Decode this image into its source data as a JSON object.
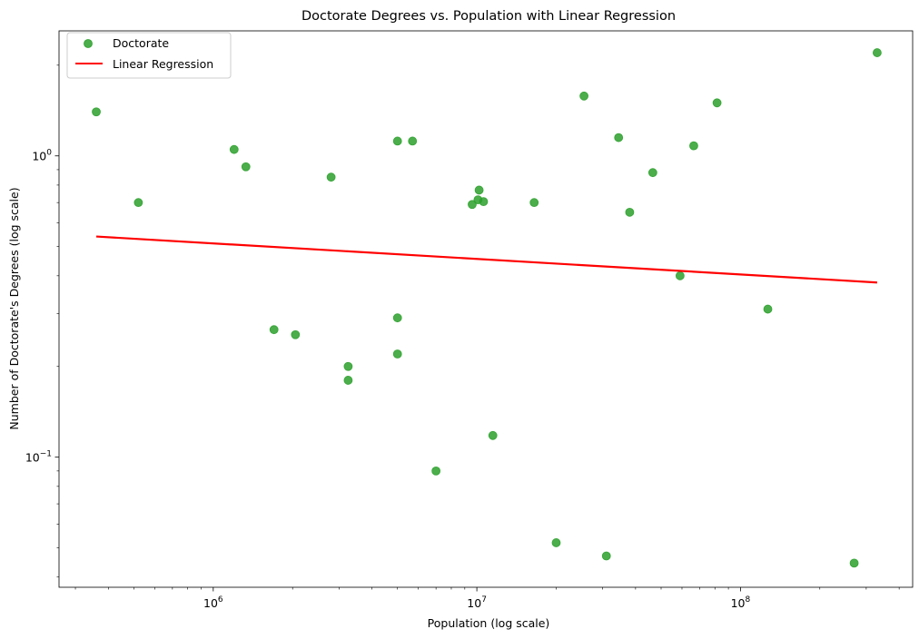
{
  "chart_data": {
    "type": "scatter",
    "title": "Doctorate Degrees vs. Population with Linear Regression",
    "xlabel": "Population (log scale)",
    "ylabel": "Number of Doctorate's Degrees (log scale)",
    "xscale": "log",
    "yscale": "log",
    "xlim": [
      260000,
      450000000
    ],
    "ylim": [
      0.037,
      2.6
    ],
    "x_ticks": [
      {
        "value": 1000000,
        "base": "10",
        "exp": "6"
      },
      {
        "value": 10000000,
        "base": "10",
        "exp": "7"
      },
      {
        "value": 100000000,
        "base": "10",
        "exp": "8"
      }
    ],
    "y_ticks": [
      {
        "value": 0.1,
        "base": "10",
        "exp": "−1"
      },
      {
        "value": 1,
        "base": "10",
        "exp": "0"
      }
    ],
    "grid": false,
    "legend_position": "top-left",
    "series": [
      {
        "name": "Doctorate",
        "kind": "scatter",
        "color": "#2ca02c",
        "points": [
          [
            360000,
            1.4
          ],
          [
            520000,
            0.7
          ],
          [
            1200000,
            1.05
          ],
          [
            1330000,
            0.92
          ],
          [
            1700000,
            0.265
          ],
          [
            2050000,
            0.255
          ],
          [
            2800000,
            0.85
          ],
          [
            3250000,
            0.2
          ],
          [
            3250000,
            0.18
          ],
          [
            5000000,
            1.12
          ],
          [
            5000000,
            0.29
          ],
          [
            5000000,
            0.22
          ],
          [
            5700000,
            1.12
          ],
          [
            7000000,
            0.09
          ],
          [
            9600000,
            0.69
          ],
          [
            10200000,
            0.77
          ],
          [
            10100000,
            0.715
          ],
          [
            10600000,
            0.705
          ],
          [
            11500000,
            0.118
          ],
          [
            16500000,
            0.7
          ],
          [
            20000000,
            0.052
          ],
          [
            25500000,
            1.58
          ],
          [
            31000000,
            0.047
          ],
          [
            34500000,
            1.15
          ],
          [
            38000000,
            0.65
          ],
          [
            46500000,
            0.88
          ],
          [
            59000000,
            0.4
          ],
          [
            66500000,
            1.08
          ],
          [
            81500000,
            1.5
          ],
          [
            127000000,
            0.31
          ],
          [
            270000000,
            0.0445
          ],
          [
            330000000,
            2.2
          ]
        ]
      },
      {
        "name": "Linear Regression",
        "kind": "line",
        "color": "#ff0000",
        "points": [
          [
            360000,
            0.54
          ],
          [
            330000000,
            0.38
          ]
        ]
      }
    ]
  }
}
